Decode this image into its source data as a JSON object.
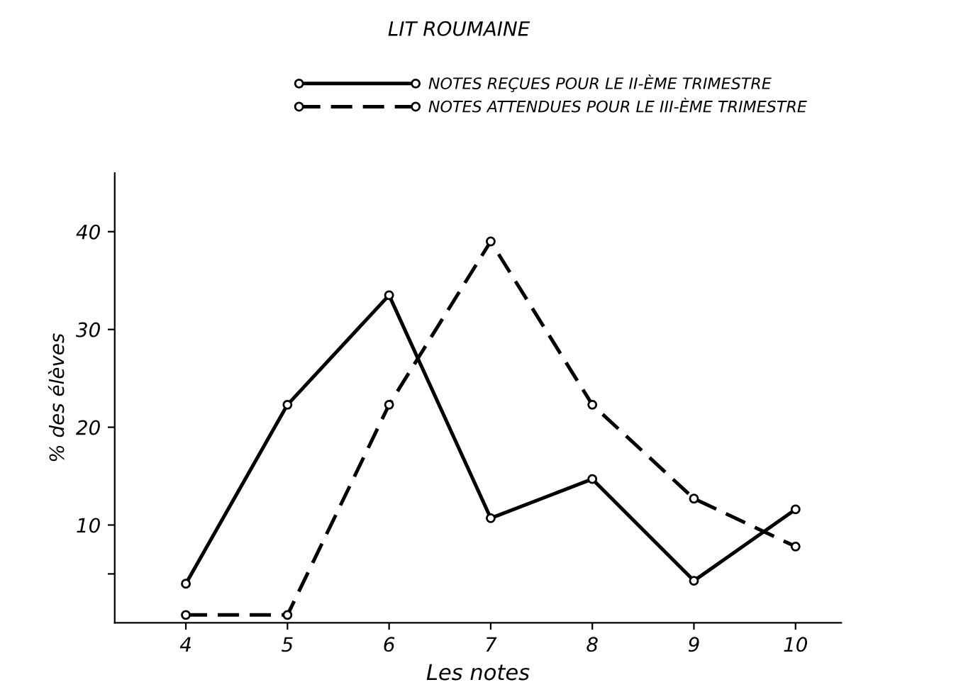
{
  "chart_data": {
    "type": "line",
    "title": "LIT ROUMAINE",
    "xlabel": "Les notes",
    "ylabel": "% des élèves",
    "x": [
      4,
      5,
      6,
      7,
      8,
      9,
      10
    ],
    "series": [
      {
        "name": "NOTES REÇUES POUR LE II-ÈME TRIMESTRE",
        "color": "#000000",
        "line_style": "solid",
        "values": [
          4,
          22.3,
          33.5,
          10.7,
          14.7,
          4.3,
          11.6
        ]
      },
      {
        "name": "NOTES ATTENDUES POUR LE III-ÈME TRIMESTRE",
        "color": "#000000",
        "line_style": "dashed",
        "values": [
          0.8,
          0.8,
          22.3,
          39,
          22.3,
          12.7,
          7.8
        ]
      }
    ],
    "xlim": [
      3.3,
      10.45
    ],
    "ylim": [
      0,
      46
    ],
    "xticks": [
      4,
      5,
      6,
      7,
      8,
      9,
      10
    ],
    "yticks": [
      {
        "value": 5,
        "label": null
      },
      10,
      20,
      30,
      40
    ],
    "marker": "circle",
    "legend": "top",
    "grid": false
  }
}
